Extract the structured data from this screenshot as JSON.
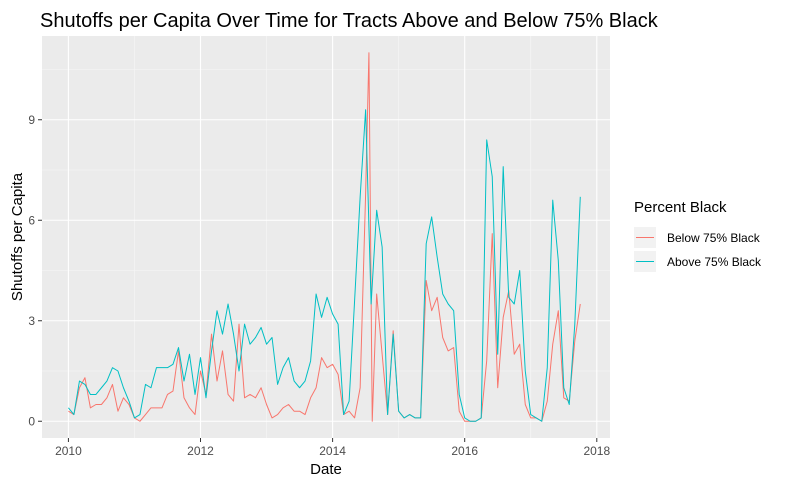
{
  "chart_data": {
    "type": "line",
    "title": "Shutoffs per Capita Over Time for Tracts Above and Below 75% Black",
    "xlabel": "Date",
    "ylabel": "Shutoffs per Capita",
    "x_ticks": [
      "2010",
      "2012",
      "2014",
      "2016",
      "2018"
    ],
    "y_ticks": [
      "0",
      "3",
      "6",
      "9"
    ],
    "xlim": [
      2009.6,
      2018.2
    ],
    "ylim": [
      -0.5,
      11.5
    ],
    "grid": true,
    "panel_background": "#ebebeb",
    "legend": {
      "title": "Percent Black",
      "position": "right"
    },
    "series": [
      {
        "name": "Below 75% Black",
        "color": "#F8766D",
        "points": [
          [
            2010.0,
            0.3
          ],
          [
            2010.083,
            0.2
          ],
          [
            2010.167,
            1.0
          ],
          [
            2010.25,
            1.3
          ],
          [
            2010.333,
            0.4
          ],
          [
            2010.417,
            0.5
          ],
          [
            2010.5,
            0.5
          ],
          [
            2010.583,
            0.7
          ],
          [
            2010.667,
            1.1
          ],
          [
            2010.75,
            0.3
          ],
          [
            2010.833,
            0.7
          ],
          [
            2010.917,
            0.5
          ],
          [
            2011.0,
            0.1
          ],
          [
            2011.083,
            0.0
          ],
          [
            2011.167,
            0.2
          ],
          [
            2011.25,
            0.4
          ],
          [
            2011.333,
            0.4
          ],
          [
            2011.417,
            0.4
          ],
          [
            2011.5,
            0.8
          ],
          [
            2011.583,
            0.9
          ],
          [
            2011.667,
            2.1
          ],
          [
            2011.75,
            0.7
          ],
          [
            2011.833,
            0.4
          ],
          [
            2011.917,
            0.2
          ],
          [
            2012.0,
            1.5
          ],
          [
            2012.083,
            0.8
          ],
          [
            2012.167,
            2.6
          ],
          [
            2012.25,
            1.2
          ],
          [
            2012.333,
            2.1
          ],
          [
            2012.417,
            0.8
          ],
          [
            2012.5,
            0.6
          ],
          [
            2012.583,
            2.9
          ],
          [
            2012.667,
            0.7
          ],
          [
            2012.75,
            0.8
          ],
          [
            2012.833,
            0.7
          ],
          [
            2012.917,
            1.0
          ],
          [
            2013.0,
            0.5
          ],
          [
            2013.083,
            0.1
          ],
          [
            2013.167,
            0.2
          ],
          [
            2013.25,
            0.4
          ],
          [
            2013.333,
            0.5
          ],
          [
            2013.417,
            0.3
          ],
          [
            2013.5,
            0.3
          ],
          [
            2013.583,
            0.2
          ],
          [
            2013.667,
            0.7
          ],
          [
            2013.75,
            1.0
          ],
          [
            2013.833,
            1.9
          ],
          [
            2013.917,
            1.6
          ],
          [
            2014.0,
            1.7
          ],
          [
            2014.083,
            1.4
          ],
          [
            2014.167,
            0.2
          ],
          [
            2014.25,
            0.3
          ],
          [
            2014.333,
            0.1
          ],
          [
            2014.417,
            1.0
          ],
          [
            2014.5,
            6.8
          ],
          [
            2014.55,
            11.0
          ],
          [
            2014.6,
            0.0
          ],
          [
            2014.667,
            3.8
          ],
          [
            2014.75,
            2.0
          ],
          [
            2014.833,
            0.2
          ],
          [
            2014.917,
            2.7
          ],
          [
            2015.0,
            0.3
          ],
          [
            2015.083,
            0.1
          ],
          [
            2015.167,
            0.2
          ],
          [
            2015.25,
            0.1
          ],
          [
            2015.333,
            0.1
          ],
          [
            2015.417,
            4.2
          ],
          [
            2015.5,
            3.3
          ],
          [
            2015.583,
            3.7
          ],
          [
            2015.667,
            2.5
          ],
          [
            2015.75,
            2.1
          ],
          [
            2015.833,
            2.2
          ],
          [
            2015.917,
            0.3
          ],
          [
            2016.0,
            0.0
          ],
          [
            2016.083,
            0.0
          ],
          [
            2016.167,
            0.0
          ],
          [
            2016.25,
            0.1
          ],
          [
            2016.333,
            1.8
          ],
          [
            2016.417,
            5.6
          ],
          [
            2016.5,
            1.0
          ],
          [
            2016.583,
            3.1
          ],
          [
            2016.667,
            3.9
          ],
          [
            2016.75,
            2.0
          ],
          [
            2016.833,
            2.3
          ],
          [
            2016.917,
            0.5
          ],
          [
            2017.0,
            0.1
          ],
          [
            2017.083,
            0.1
          ],
          [
            2017.167,
            0.0
          ],
          [
            2017.25,
            0.6
          ],
          [
            2017.333,
            2.3
          ],
          [
            2017.417,
            3.3
          ],
          [
            2017.5,
            0.7
          ],
          [
            2017.583,
            0.6
          ],
          [
            2017.667,
            2.4
          ],
          [
            2017.75,
            3.5
          ]
        ]
      },
      {
        "name": "Above 75% Black",
        "color": "#00BFC4",
        "points": [
          [
            2010.0,
            0.4
          ],
          [
            2010.083,
            0.2
          ],
          [
            2010.167,
            1.2
          ],
          [
            2010.25,
            1.1
          ],
          [
            2010.333,
            0.8
          ],
          [
            2010.417,
            0.8
          ],
          [
            2010.5,
            1.0
          ],
          [
            2010.583,
            1.2
          ],
          [
            2010.667,
            1.6
          ],
          [
            2010.75,
            1.5
          ],
          [
            2010.833,
            1.0
          ],
          [
            2010.917,
            0.6
          ],
          [
            2011.0,
            0.1
          ],
          [
            2011.083,
            0.2
          ],
          [
            2011.167,
            1.1
          ],
          [
            2011.25,
            1.0
          ],
          [
            2011.333,
            1.6
          ],
          [
            2011.417,
            1.6
          ],
          [
            2011.5,
            1.6
          ],
          [
            2011.583,
            1.7
          ],
          [
            2011.667,
            2.2
          ],
          [
            2011.75,
            1.2
          ],
          [
            2011.833,
            2.0
          ],
          [
            2011.917,
            0.8
          ],
          [
            2012.0,
            1.9
          ],
          [
            2012.083,
            0.7
          ],
          [
            2012.167,
            2.1
          ],
          [
            2012.25,
            3.3
          ],
          [
            2012.333,
            2.6
          ],
          [
            2012.417,
            3.5
          ],
          [
            2012.5,
            2.6
          ],
          [
            2012.583,
            1.5
          ],
          [
            2012.667,
            2.9
          ],
          [
            2012.75,
            2.3
          ],
          [
            2012.833,
            2.5
          ],
          [
            2012.917,
            2.8
          ],
          [
            2013.0,
            2.3
          ],
          [
            2013.083,
            2.5
          ],
          [
            2013.167,
            1.1
          ],
          [
            2013.25,
            1.6
          ],
          [
            2013.333,
            1.9
          ],
          [
            2013.417,
            1.2
          ],
          [
            2013.5,
            1.0
          ],
          [
            2013.583,
            1.2
          ],
          [
            2013.667,
            1.8
          ],
          [
            2013.75,
            3.8
          ],
          [
            2013.833,
            3.1
          ],
          [
            2013.917,
            3.7
          ],
          [
            2014.0,
            3.2
          ],
          [
            2014.083,
            2.9
          ],
          [
            2014.167,
            0.2
          ],
          [
            2014.25,
            0.6
          ],
          [
            2014.333,
            3.6
          ],
          [
            2014.417,
            6.7
          ],
          [
            2014.5,
            9.3
          ],
          [
            2014.583,
            3.5
          ],
          [
            2014.667,
            6.3
          ],
          [
            2014.75,
            5.2
          ],
          [
            2014.833,
            0.2
          ],
          [
            2014.917,
            2.6
          ],
          [
            2015.0,
            0.3
          ],
          [
            2015.083,
            0.1
          ],
          [
            2015.167,
            0.2
          ],
          [
            2015.25,
            0.1
          ],
          [
            2015.333,
            0.1
          ],
          [
            2015.417,
            5.3
          ],
          [
            2015.5,
            6.1
          ],
          [
            2015.583,
            4.9
          ],
          [
            2015.667,
            3.8
          ],
          [
            2015.75,
            3.5
          ],
          [
            2015.833,
            3.3
          ],
          [
            2015.917,
            0.8
          ],
          [
            2016.0,
            0.1
          ],
          [
            2016.083,
            0.0
          ],
          [
            2016.167,
            0.0
          ],
          [
            2016.25,
            0.1
          ],
          [
            2016.333,
            8.4
          ],
          [
            2016.417,
            7.3
          ],
          [
            2016.5,
            2.0
          ],
          [
            2016.583,
            7.6
          ],
          [
            2016.667,
            3.7
          ],
          [
            2016.75,
            3.5
          ],
          [
            2016.833,
            4.5
          ],
          [
            2016.917,
            1.5
          ],
          [
            2017.0,
            0.2
          ],
          [
            2017.083,
            0.1
          ],
          [
            2017.167,
            0.0
          ],
          [
            2017.25,
            1.6
          ],
          [
            2017.333,
            6.6
          ],
          [
            2017.417,
            4.8
          ],
          [
            2017.5,
            1.0
          ],
          [
            2017.583,
            0.5
          ],
          [
            2017.667,
            2.9
          ],
          [
            2017.75,
            6.7
          ]
        ]
      }
    ]
  }
}
